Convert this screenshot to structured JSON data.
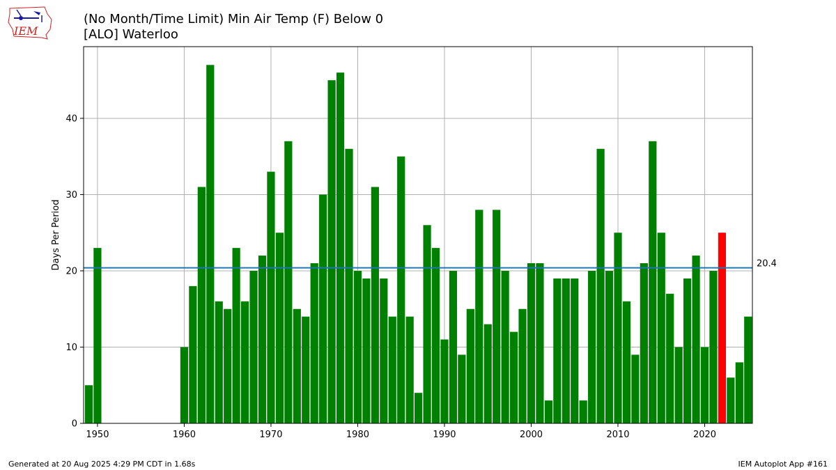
{
  "title_line1": "(No Month/Time Limit) Min Air Temp (F) Below 0",
  "title_line2": "[ALO] Waterloo",
  "logo_text": "IEM",
  "footer_left": "Generated at 20 Aug 2025 4:29 PM CDT in 1.68s",
  "footer_right": "IEM Autoplot App #161",
  "colors": {
    "bar": "#008000",
    "highlight": "#ff0000",
    "average_line": "#1f77b4",
    "grid": "#b0b0b0",
    "logo": "#cc2222"
  },
  "chart_data": {
    "type": "bar",
    "ylabel": "Days Per Period",
    "xlim": [
      1948.4,
      2025.5
    ],
    "ylim": [
      0,
      49.4
    ],
    "xticks": [
      1950,
      1960,
      1970,
      1980,
      1990,
      2000,
      2010,
      2020
    ],
    "yticks": [
      0,
      10,
      20,
      30,
      40
    ],
    "grid": true,
    "average": 20.4,
    "average_label": "20.4",
    "highlight_year": 2022,
    "x": [
      1949,
      1950,
      1960,
      1961,
      1962,
      1963,
      1964,
      1965,
      1966,
      1967,
      1968,
      1969,
      1970,
      1971,
      1972,
      1973,
      1974,
      1975,
      1976,
      1977,
      1978,
      1979,
      1980,
      1981,
      1982,
      1983,
      1984,
      1985,
      1986,
      1987,
      1988,
      1989,
      1990,
      1991,
      1992,
      1993,
      1994,
      1995,
      1996,
      1997,
      1998,
      1999,
      2000,
      2001,
      2002,
      2003,
      2004,
      2005,
      2006,
      2007,
      2008,
      2009,
      2010,
      2011,
      2012,
      2013,
      2014,
      2015,
      2016,
      2017,
      2018,
      2019,
      2020,
      2021,
      2022,
      2023,
      2024,
      2025
    ],
    "values": [
      5,
      23,
      10,
      18,
      31,
      47,
      16,
      15,
      23,
      16,
      20,
      22,
      33,
      25,
      37,
      15,
      14,
      21,
      30,
      45,
      46,
      36,
      20,
      19,
      31,
      19,
      14,
      35,
      14,
      4,
      26,
      23,
      11,
      20,
      9,
      15,
      28,
      13,
      28,
      20,
      12,
      15,
      21,
      21,
      3,
      19,
      19,
      19,
      3,
      20,
      36,
      20,
      25,
      16,
      9,
      21,
      37,
      25,
      17,
      10,
      19,
      22,
      10,
      20,
      25,
      6,
      8,
      14
    ]
  }
}
